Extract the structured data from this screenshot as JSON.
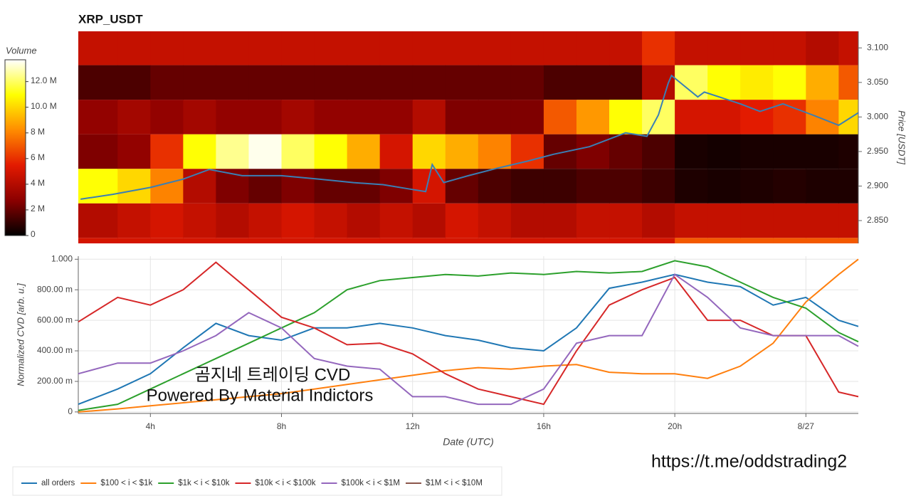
{
  "chart_data": [
    {
      "type": "heatmap",
      "title": "XRP_USDT",
      "ylabel": "Price [USDT]",
      "colorbar_label": "Volume",
      "colormap": [
        "#000000",
        "#8b0000",
        "#e31a00",
        "#ff8c00",
        "#ffff00",
        "#ffffff"
      ],
      "clim": [
        0,
        13.7
      ],
      "cticks": [
        0,
        {
          "value": 2,
          "label": "2 M"
        },
        {
          "value": 4,
          "label": "4 M"
        },
        {
          "value": 6,
          "label": "6 M"
        },
        {
          "value": 8,
          "label": "8 M"
        },
        {
          "value": 10,
          "label": "10.0 M"
        },
        {
          "value": 12,
          "label": "12.0 M"
        }
      ],
      "xlim": [
        1.8,
        25.6
      ],
      "ylim": [
        2.817,
        3.124
      ],
      "yticks": [
        {
          "value": 2.85,
          "label": "2.850"
        },
        {
          "value": 2.9,
          "label": "2.900"
        },
        {
          "value": 2.95,
          "label": "2.950"
        },
        {
          "value": 3.0,
          "label": "3.000"
        },
        {
          "value": 3.05,
          "label": "3.050"
        },
        {
          "value": 3.1,
          "label": "3.100"
        }
      ],
      "x_bins": [
        1.8,
        3,
        4,
        5,
        6,
        7,
        8,
        9,
        10,
        11,
        12,
        13,
        14,
        15,
        16,
        17,
        18,
        19,
        20,
        21,
        22,
        23,
        24,
        25,
        25.6
      ],
      "y_bins": [
        2.775,
        2.825,
        2.875,
        2.925,
        2.975,
        3.025,
        3.075,
        3.125
      ],
      "z": [
        [
          5,
          5,
          5,
          5,
          5,
          5,
          5,
          5,
          5,
          5,
          5,
          5,
          5,
          5,
          5,
          5,
          5,
          5,
          7,
          7,
          7,
          7,
          7,
          7
        ],
        [
          4,
          4.5,
          5,
          4.5,
          4,
          4.5,
          5,
          4.5,
          4,
          4.5,
          4,
          5,
          4.5,
          4,
          4,
          4.5,
          4.5,
          4,
          4.5,
          4.5,
          4.5,
          4.5,
          4.5,
          4.5
        ],
        [
          11,
          10,
          8,
          4,
          2.5,
          2,
          2.5,
          2,
          2,
          2.5,
          5,
          2,
          1.5,
          1.2,
          1.2,
          1.5,
          1.5,
          1.2,
          0.6,
          0.5,
          0.6,
          0.7,
          0.6,
          0.6
        ],
        [
          2.5,
          3,
          6,
          11,
          12.5,
          13.5,
          12,
          11,
          9,
          5,
          10,
          9,
          8,
          6,
          2,
          2.5,
          2,
          1.5,
          0.5,
          0.4,
          0.5,
          0.5,
          0.5,
          0.6
        ],
        [
          3,
          3.5,
          3,
          3.5,
          3,
          3,
          3.5,
          3,
          3,
          3,
          4,
          2.5,
          2.5,
          2.5,
          7,
          8.5,
          11,
          12,
          5,
          5,
          5.5,
          6,
          8,
          10
        ],
        [
          1.5,
          1.5,
          2,
          2,
          2,
          2,
          2,
          2,
          2,
          2,
          2,
          2,
          2,
          2,
          1.5,
          1.5,
          1.5,
          4,
          12,
          11,
          10.5,
          11,
          9,
          7
        ],
        [
          4.5,
          4.5,
          4.5,
          4.5,
          4.5,
          4.5,
          4.5,
          4.5,
          4.5,
          4.5,
          4.5,
          4.5,
          4.5,
          4.5,
          4.5,
          4.5,
          4.5,
          6,
          4.5,
          4.5,
          4.5,
          4.5,
          4,
          4.5
        ]
      ],
      "line": {
        "color": "#3a7fb5",
        "x": [
          1.87,
          2.85,
          4,
          5,
          5.8,
          6.8,
          8,
          9.15,
          10.2,
          11.1,
          12,
          12.4,
          12.6,
          12.95,
          13.7,
          14.6,
          15.5,
          16.3,
          17.4,
          18.5,
          19.15,
          19.5,
          19.8,
          19.9,
          20.7,
          20.9,
          22,
          22.6,
          23.3,
          24.2,
          25,
          25.6
        ],
        "values": [
          2.881,
          2.888,
          2.898,
          2.91,
          2.924,
          2.915,
          2.915,
          2.91,
          2.905,
          2.902,
          2.895,
          2.892,
          2.931,
          2.905,
          2.915,
          2.926,
          2.936,
          2.946,
          2.957,
          2.977,
          2.972,
          3.003,
          3.049,
          3.06,
          3.029,
          3.036,
          3.019,
          3.008,
          3.019,
          3.003,
          2.988,
          3.006
        ]
      }
    },
    {
      "type": "line",
      "xlabel": "Date (UTC)",
      "ylabel": "Normalized CVD [arb. u.]",
      "grid": true,
      "xlim": [
        1.8,
        25.6
      ],
      "ylim": [
        -0.01,
        1.02
      ],
      "xticks": [
        {
          "value": 4,
          "label": "4h"
        },
        {
          "value": 8,
          "label": "8h"
        },
        {
          "value": 12,
          "label": "12h"
        },
        {
          "value": 16,
          "label": "16h"
        },
        {
          "value": 20,
          "label": "20h"
        },
        {
          "value": 24,
          "label": "8/27"
        }
      ],
      "yticks": [
        0,
        {
          "value": 0.2,
          "label": "200.00 m"
        },
        {
          "value": 0.4,
          "label": "400.00 m"
        },
        {
          "value": 0.6,
          "label": "600.00 m"
        },
        {
          "value": 0.8,
          "label": "800.00 m"
        },
        {
          "value": 1,
          "label": "1.000"
        }
      ],
      "x": [
        1.8,
        3,
        4,
        5,
        6,
        7,
        8,
        9,
        10,
        11,
        12,
        13,
        14,
        15,
        16,
        17,
        18,
        19,
        20,
        21,
        22,
        23,
        24,
        25,
        25.6
      ],
      "series": [
        {
          "name": "all orders",
          "color": "#1f77b4",
          "values": [
            0.05,
            0.15,
            0.25,
            0.42,
            0.58,
            0.5,
            0.47,
            0.55,
            0.55,
            0.58,
            0.55,
            0.5,
            0.47,
            0.42,
            0.4,
            0.55,
            0.81,
            0.85,
            0.9,
            0.85,
            0.82,
            0.7,
            0.75,
            0.6,
            0.56
          ]
        },
        {
          "name": "$100 < i < $1k",
          "color": "#ff7f0e",
          "values": [
            0,
            0.02,
            0.04,
            0.06,
            0.08,
            0.1,
            0.12,
            0.15,
            0.18,
            0.21,
            0.24,
            0.27,
            0.29,
            0.28,
            0.3,
            0.31,
            0.26,
            0.25,
            0.25,
            0.22,
            0.3,
            0.45,
            0.72,
            0.9,
            1
          ]
        },
        {
          "name": "$1k < i < $10k",
          "color": "#2ca02c",
          "values": [
            0.01,
            0.05,
            0.15,
            0.25,
            0.35,
            0.45,
            0.55,
            0.65,
            0.8,
            0.86,
            0.88,
            0.9,
            0.89,
            0.91,
            0.9,
            0.92,
            0.91,
            0.92,
            0.99,
            0.95,
            0.85,
            0.75,
            0.68,
            0.52,
            0.46
          ]
        },
        {
          "name": "$10k < i < $100k",
          "color": "#d62728",
          "values": [
            0.59,
            0.75,
            0.7,
            0.8,
            0.98,
            0.8,
            0.62,
            0.55,
            0.44,
            0.45,
            0.38,
            0.25,
            0.15,
            0.1,
            0.05,
            0.4,
            0.7,
            0.8,
            0.88,
            0.6,
            0.6,
            0.5,
            0.5,
            0.13,
            0.1
          ]
        },
        {
          "name": "$100k < i < $1M",
          "color": "#9467bd",
          "values": [
            0.25,
            0.32,
            0.32,
            0.4,
            0.5,
            0.65,
            0.55,
            0.35,
            0.3,
            0.28,
            0.1,
            0.1,
            0.05,
            0.05,
            0.15,
            0.45,
            0.5,
            0.5,
            0.9,
            0.75,
            0.55,
            0.5,
            0.5,
            0.5,
            0.43
          ]
        },
        {
          "name": "$1M < i < $10M",
          "color": "#8c564b",
          "values": [
            null,
            null,
            null,
            null,
            null,
            null,
            null,
            null,
            null,
            null,
            null,
            null,
            null,
            null,
            null,
            null,
            null,
            null,
            null,
            null,
            null,
            null,
            null,
            null,
            null
          ]
        }
      ],
      "annotations": [
        "곰지네 트레이딩 CVD",
        "Powered By Material Indictors",
        "https://t.me/oddstrading2"
      ]
    }
  ]
}
